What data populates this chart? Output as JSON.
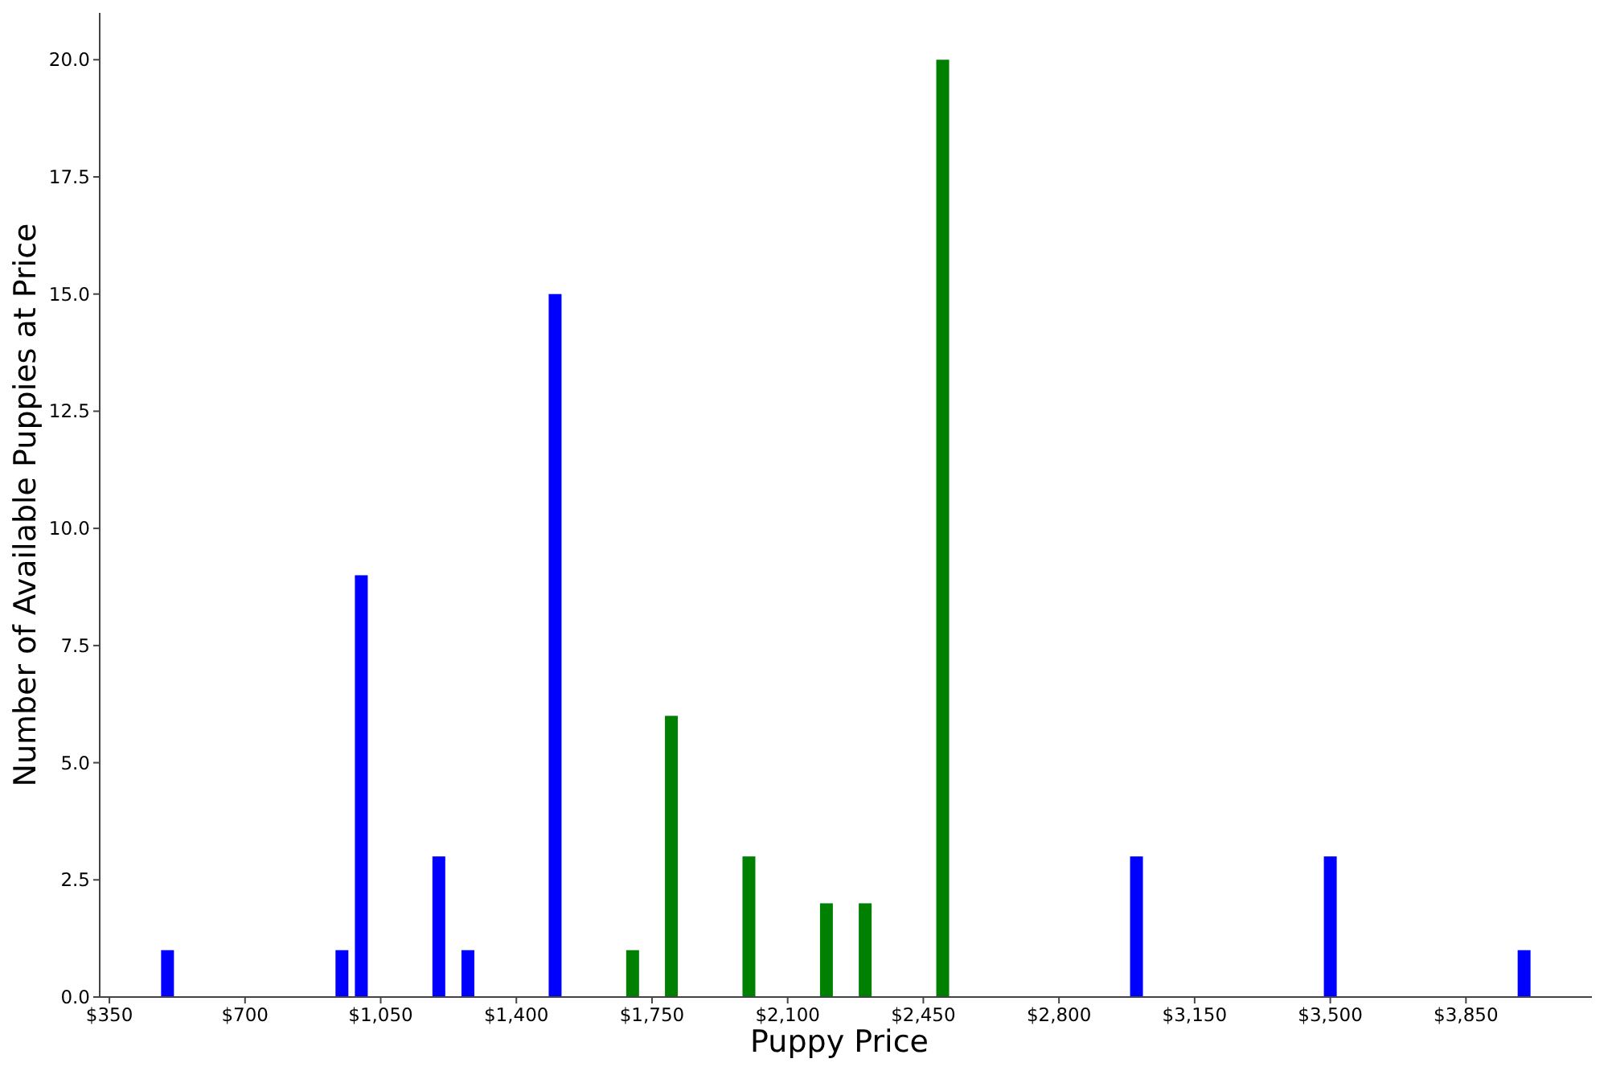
{
  "chart_data": {
    "type": "bar",
    "xlabel": "Puppy Price",
    "ylabel": "Number of Available Puppies at Price",
    "x": [
      500,
      950,
      1000,
      1200,
      1275,
      1500,
      1700,
      1800,
      2000,
      2200,
      2300,
      2500,
      3000,
      3500,
      4000
    ],
    "values": [
      1,
      1,
      9,
      3,
      1,
      15,
      1,
      6,
      3,
      2,
      2,
      20,
      3,
      3,
      1
    ],
    "colors": [
      "#0000ff",
      "#0000ff",
      "#0000ff",
      "#0000ff",
      "#0000ff",
      "#0000ff",
      "#008000",
      "#008000",
      "#008000",
      "#008000",
      "#008000",
      "#008000",
      "#0000ff",
      "#0000ff",
      "#0000ff"
    ],
    "xlim": [
      325,
      4175
    ],
    "xticks": [
      {
        "value": 350,
        "label": "$350"
      },
      {
        "value": 700,
        "label": "$700"
      },
      {
        "value": 1050,
        "label": "$1,050"
      },
      {
        "value": 1400,
        "label": "$1,400"
      },
      {
        "value": 1750,
        "label": "$1,750"
      },
      {
        "value": 2100,
        "label": "$2,100"
      },
      {
        "value": 2450,
        "label": "$2,450"
      },
      {
        "value": 2800,
        "label": "$2,800"
      },
      {
        "value": 3150,
        "label": "$3,150"
      },
      {
        "value": 3500,
        "label": "$3,500"
      },
      {
        "value": 3850,
        "label": "$3,850"
      }
    ],
    "ylim": [
      0,
      21
    ],
    "yticks": [
      {
        "value": 0,
        "label": "0.0"
      },
      {
        "value": 2.5,
        "label": "2.5"
      },
      {
        "value": 5,
        "label": "5.0"
      },
      {
        "value": 7.5,
        "label": "7.5"
      },
      {
        "value": 10,
        "label": "10.0"
      },
      {
        "value": 12.5,
        "label": "12.5"
      },
      {
        "value": 15,
        "label": "15.0"
      },
      {
        "value": 17.5,
        "label": "17.5"
      },
      {
        "value": 20,
        "label": "20.0"
      }
    ],
    "grid": false
  }
}
